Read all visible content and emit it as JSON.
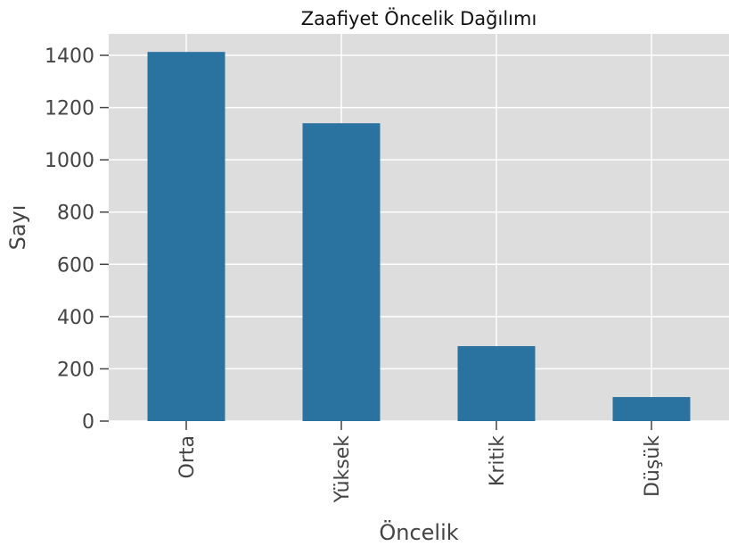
{
  "chart_data": {
    "type": "bar",
    "title": "Zaafiyet Öncelik Dağılımı",
    "x_label": "Öncelik",
    "y_label": "Sayı",
    "categories": [
      "Orta",
      "Yüksek",
      "Kritik",
      "Düşük"
    ],
    "values": [
      1413,
      1140,
      287,
      92
    ],
    "color": "#2a72a0",
    "ylim": [
      0,
      1482
    ],
    "yticks": [
      0,
      200,
      400,
      600,
      800,
      1000,
      1200,
      1400
    ],
    "grid": true
  }
}
